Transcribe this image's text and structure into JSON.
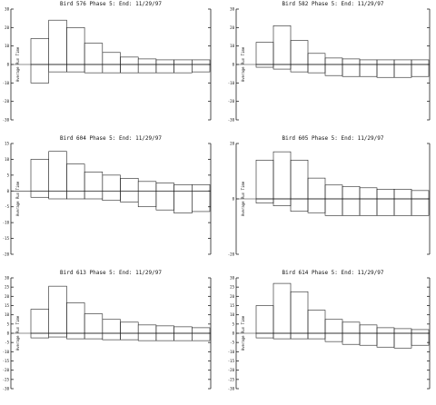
{
  "chart_data": [
    {
      "type": "bar",
      "title": "Bird 576 Phase 5:  End: 11/29/97",
      "ylabel": "Average Run Time",
      "ylim": [
        -30,
        30
      ],
      "yticks": [
        -30,
        -20,
        -10,
        0,
        10,
        20,
        30
      ],
      "x": [
        1,
        2,
        3,
        4,
        5,
        6,
        7,
        8,
        9,
        10
      ],
      "series": [
        {
          "values": [
            14,
            24,
            20,
            11.5,
            6.5,
            4,
            3,
            2.5,
            2.5,
            2.5
          ]
        },
        {
          "values": [
            -10,
            -4,
            -4,
            -4.5,
            -4.5,
            -4.5,
            -4.5,
            -4.5,
            -4.5,
            -4
          ]
        }
      ]
    },
    {
      "type": "bar",
      "title": "Bird 582 Phase 5:  End: 11/29/97",
      "ylabel": "Average Run Time",
      "ylim": [
        -30,
        30
      ],
      "yticks": [
        -30,
        -20,
        -10,
        0,
        10,
        20,
        30
      ],
      "x": [
        1,
        2,
        3,
        4,
        5,
        6,
        7,
        8,
        9,
        10
      ],
      "series": [
        {
          "values": [
            12,
            21,
            13,
            6,
            3.5,
            3,
            2.5,
            2.5,
            2.5,
            2.5
          ]
        },
        {
          "values": [
            -1.5,
            -2.5,
            -4,
            -4.5,
            -6,
            -6.5,
            -6.5,
            -7,
            -7,
            -6.5
          ]
        }
      ]
    },
    {
      "type": "bar",
      "title": "Bird 604 Phase 5:  End: 11/29/97",
      "ylabel": "Average Run Time",
      "ylim": [
        -20,
        15
      ],
      "yticks": [
        -20,
        -15,
        -10,
        -5,
        0,
        5,
        10,
        15
      ],
      "x": [
        1,
        2,
        3,
        4,
        5,
        6,
        7,
        8,
        9,
        10
      ],
      "series": [
        {
          "values": [
            10,
            12.5,
            8.5,
            6,
            5,
            4,
            3,
            2.5,
            2,
            2
          ]
        },
        {
          "values": [
            -2,
            -2.5,
            -2.5,
            -2.5,
            -3,
            -3.5,
            -5,
            -6,
            -7,
            -6.5
          ]
        }
      ]
    },
    {
      "type": "bar",
      "title": "Bird 605 Phase 5:  End: 11/29/97",
      "ylabel": "Average Run Time",
      "ylim": [
        -20,
        20
      ],
      "yticks": [
        -20,
        0,
        20
      ],
      "x": [
        1,
        2,
        3,
        4,
        5,
        6,
        7,
        8,
        9,
        10
      ],
      "series": [
        {
          "values": [
            14,
            17,
            14,
            7.5,
            5,
            4.5,
            4,
            3.5,
            3.5,
            3
          ]
        },
        {
          "values": [
            -1.5,
            -2.5,
            -4.5,
            -5,
            -6,
            -6,
            -6,
            -6,
            -6,
            -6
          ]
        }
      ]
    },
    {
      "type": "bar",
      "title": "Bird 613 Phase 5:  End: 11/29/97",
      "ylabel": "Average Run Time",
      "ylim": [
        -30,
        30
      ],
      "yticks": [
        -30,
        -25,
        -20,
        -15,
        -10,
        -5,
        0,
        5,
        10,
        15,
        20,
        25,
        30
      ],
      "x": [
        1,
        2,
        3,
        4,
        5,
        6,
        7,
        8,
        9,
        10
      ],
      "series": [
        {
          "values": [
            13,
            25.5,
            16.5,
            10.5,
            7.5,
            6,
            4.5,
            4,
            3.5,
            3
          ]
        },
        {
          "values": [
            -2.5,
            -2,
            -3,
            -3,
            -3.5,
            -3.5,
            -4,
            -4,
            -4,
            -4
          ]
        }
      ]
    },
    {
      "type": "bar",
      "title": "Bird 614 Phase 5:  End: 11/29/97",
      "ylabel": "Average Run Time",
      "ylim": [
        -30,
        30
      ],
      "yticks": [
        -30,
        -25,
        -20,
        -15,
        -10,
        -5,
        0,
        5,
        10,
        15,
        20,
        25,
        30
      ],
      "x": [
        1,
        2,
        3,
        4,
        5,
        6,
        7,
        8,
        9,
        10
      ],
      "series": [
        {
          "values": [
            15,
            27,
            22.5,
            12.5,
            7.5,
            6,
            4.5,
            3,
            2.5,
            2
          ]
        },
        {
          "values": [
            -2.5,
            -3,
            -3,
            -3,
            -4.5,
            -6,
            -6.5,
            -7.5,
            -8,
            -6.5
          ]
        }
      ]
    }
  ]
}
